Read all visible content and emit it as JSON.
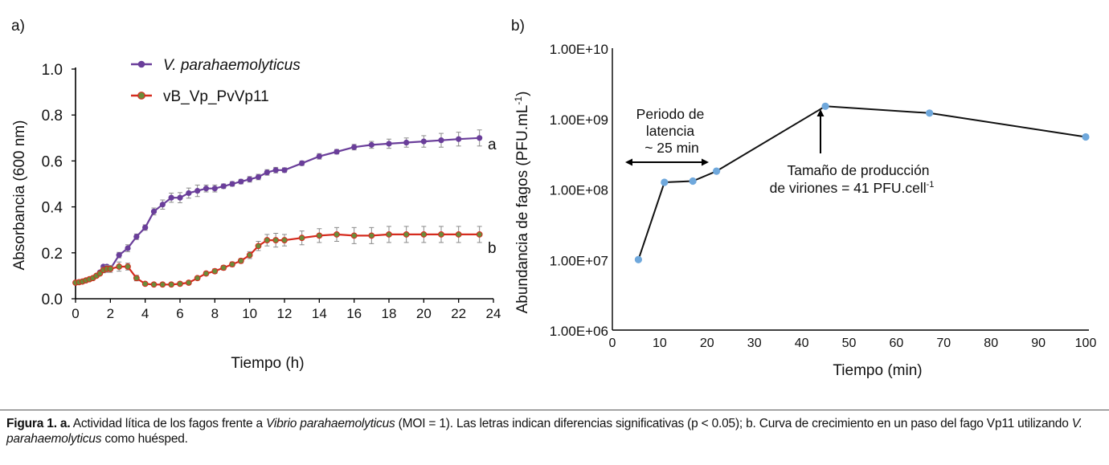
{
  "chart_data": [
    {
      "type": "line",
      "panel_label": "a)",
      "xlabel": "Tiempo (h)",
      "ylabel": "Absorbancia (600 nm)",
      "xlim": [
        0,
        24
      ],
      "ylim": [
        0.0,
        1.0
      ],
      "xticks": [
        "0",
        "2",
        "4",
        "6",
        "8",
        "10",
        "12",
        "14",
        "16",
        "18",
        "20",
        "22",
        "24"
      ],
      "yticks": [
        "0.0",
        "0.2",
        "0.4",
        "0.6",
        "0.8",
        "1.0"
      ],
      "series": [
        {
          "name": "V. parahaemolyticus",
          "color": "#6a3e9a",
          "end_label": "a",
          "x": [
            0,
            0.2,
            0.4,
            0.6,
            0.8,
            1.0,
            1.2,
            1.4,
            1.6,
            1.8,
            2.0,
            2.5,
            3.0,
            3.5,
            4.0,
            4.5,
            5.0,
            5.5,
            6.0,
            6.5,
            7.0,
            7.5,
            8.0,
            8.5,
            9.0,
            9.5,
            10.0,
            10.5,
            11.0,
            11.5,
            12.0,
            13.0,
            14.0,
            15.0,
            16.0,
            17.0,
            18.0,
            19.0,
            20.0,
            21.0,
            22.0,
            23.2
          ],
          "y": [
            0.07,
            0.072,
            0.075,
            0.08,
            0.085,
            0.09,
            0.1,
            0.115,
            0.14,
            0.14,
            0.13,
            0.19,
            0.22,
            0.27,
            0.31,
            0.38,
            0.41,
            0.44,
            0.44,
            0.46,
            0.47,
            0.48,
            0.48,
            0.49,
            0.5,
            0.51,
            0.52,
            0.53,
            0.55,
            0.56,
            0.56,
            0.59,
            0.62,
            0.64,
            0.66,
            0.67,
            0.675,
            0.68,
            0.685,
            0.69,
            0.695,
            0.7
          ],
          "err": [
            0,
            0,
            0,
            0,
            0,
            0,
            0,
            0,
            0,
            0,
            0,
            0.012,
            0.015,
            0.012,
            0.012,
            0.015,
            0.02,
            0.02,
            0.022,
            0.022,
            0.025,
            0.015,
            0.015,
            0.01,
            0.01,
            0.01,
            0.012,
            0.012,
            0.012,
            0.012,
            0.01,
            0.01,
            0.012,
            0.01,
            0.012,
            0.015,
            0.02,
            0.02,
            0.025,
            0.03,
            0.03,
            0.035
          ]
        },
        {
          "name": "vB_Vp_PvVp11",
          "color": "#d62b1e",
          "end_label": "b",
          "x": [
            0,
            0.2,
            0.4,
            0.6,
            0.8,
            1.0,
            1.2,
            1.4,
            1.6,
            1.8,
            2.0,
            2.5,
            3.0,
            3.5,
            4.0,
            4.5,
            5.0,
            5.5,
            6.0,
            6.5,
            7.0,
            7.5,
            8.0,
            8.5,
            9.0,
            9.5,
            10.0,
            10.5,
            11.0,
            11.5,
            12.0,
            13.0,
            14.0,
            15.0,
            16.0,
            17.0,
            18.0,
            19.0,
            20.0,
            21.0,
            22.0,
            23.2
          ],
          "y": [
            0.07,
            0.072,
            0.075,
            0.08,
            0.085,
            0.09,
            0.1,
            0.11,
            0.125,
            0.13,
            0.13,
            0.14,
            0.14,
            0.09,
            0.065,
            0.062,
            0.062,
            0.062,
            0.065,
            0.07,
            0.09,
            0.11,
            0.12,
            0.135,
            0.15,
            0.165,
            0.19,
            0.23,
            0.255,
            0.255,
            0.255,
            0.265,
            0.275,
            0.28,
            0.275,
            0.275,
            0.28,
            0.28,
            0.28,
            0.28,
            0.28,
            0.28
          ],
          "err": [
            0,
            0,
            0,
            0,
            0,
            0,
            0,
            0,
            0.012,
            0.015,
            0.015,
            0.02,
            0.015,
            0.012,
            0.005,
            0.005,
            0.005,
            0.005,
            0.008,
            0.008,
            0.008,
            0.008,
            0.01,
            0.01,
            0.01,
            0.01,
            0.015,
            0.02,
            0.025,
            0.03,
            0.025,
            0.03,
            0.03,
            0.03,
            0.035,
            0.035,
            0.035,
            0.035,
            0.035,
            0.035,
            0.035,
            0.035
          ]
        }
      ]
    },
    {
      "type": "line",
      "panel_label": "b)",
      "xlabel": "Tiempo (min)",
      "ylabel": "Abundancia de fagos (PFU.mL",
      "ylabel_sup": "-1",
      "ylabel_tail": ")",
      "yscale": "log",
      "xlim": [
        0,
        100
      ],
      "ylim": [
        1000000,
        10000000000
      ],
      "xticks": [
        "0",
        "10",
        "20",
        "30",
        "40",
        "50",
        "60",
        "70",
        "80",
        "90",
        "100"
      ],
      "yticks": [
        "1.00E+06",
        "1.00E+07",
        "1.00E+08",
        "1.00E+09",
        "1.00E+10"
      ],
      "series": [
        {
          "name": "Vp11",
          "color": "#6fa8dc",
          "x": [
            5.5,
            11,
            17,
            22,
            45,
            67,
            100
          ],
          "y": [
            10000000,
            125000000,
            130000000,
            180000000,
            1500000000,
            1200000000,
            550000000
          ]
        }
      ],
      "annotations": {
        "latency_line1": "Periodo de",
        "latency_line2": "latencia",
        "latency_line3": "~ 25 min",
        "burst_line1": "Tamaño de producción",
        "burst_line2": "de viriones = 41 PFU.cell",
        "burst_sup": "-1"
      }
    }
  ],
  "caption": {
    "fig_label": "Figura 1. a.",
    "t1": " Actividad lítica de los fagos frente a ",
    "i1": "Vibrio parahaemolyticus",
    "t2": " (MOI = 1). Las letras indican diferencias significativas (p < 0.05); b. Curva de crecimiento en un paso del fago Vp11 utilizando ",
    "i2": "V. parahaemolyticus",
    "t3": " como huésped."
  }
}
